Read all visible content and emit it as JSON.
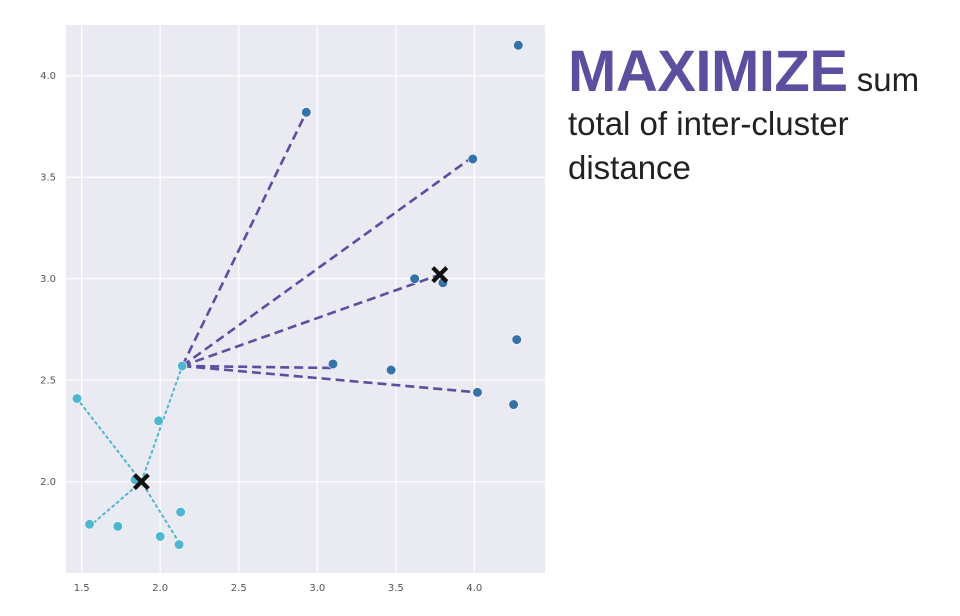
{
  "caption": {
    "emphasis": "MAXIMIZE",
    "rest": " sum total of inter-cluster distance"
  },
  "colors": {
    "background": "#eaeaf2",
    "grid": "#ffffff",
    "cluster_light": "#4fb6cf",
    "cluster_dark": "#3572a8",
    "line": "#5c4fa0",
    "centroid": "#111111",
    "emphasis": "#5c4fa0"
  },
  "chart_data": {
    "type": "scatter",
    "title": "",
    "xlabel": "",
    "ylabel": "",
    "xlim": [
      1.4,
      4.45
    ],
    "ylim": [
      1.55,
      4.25
    ],
    "grid": true,
    "xticks": [
      "1.5",
      "2.0",
      "2.5",
      "3.0",
      "3.5",
      "4.0"
    ],
    "yticks": [
      "2.0",
      "2.5",
      "3.0",
      "3.5",
      "4.0"
    ],
    "series": [
      {
        "color": "cluster_light",
        "points": [
          [
            1.47,
            2.41
          ],
          [
            1.55,
            1.79
          ],
          [
            1.73,
            1.78
          ],
          [
            1.84,
            2.01
          ],
          [
            1.99,
            2.3
          ],
          [
            2.0,
            1.73
          ],
          [
            2.12,
            1.69
          ],
          [
            2.13,
            1.85
          ],
          [
            2.14,
            2.57
          ]
        ]
      },
      {
        "color": "cluster_dark",
        "points": [
          [
            2.93,
            3.82
          ],
          [
            3.1,
            2.58
          ],
          [
            3.47,
            2.55
          ],
          [
            3.62,
            3.0
          ],
          [
            3.8,
            2.98
          ],
          [
            3.99,
            3.59
          ],
          [
            4.02,
            2.44
          ],
          [
            4.25,
            2.38
          ],
          [
            4.27,
            2.7
          ],
          [
            4.28,
            4.15
          ]
        ]
      }
    ],
    "centroids": [
      [
        1.88,
        2.0
      ],
      [
        3.78,
        3.02
      ]
    ],
    "dotted_lines_to_centroid": {
      "centroid": [
        1.88,
        2.0
      ],
      "from": [
        [
          1.47,
          2.41
        ],
        [
          1.55,
          1.78
        ],
        [
          2.14,
          2.57
        ],
        [
          2.12,
          1.7
        ]
      ]
    },
    "dashed_lines_from": [
      2.14,
      2.57
    ],
    "dashed_lines_to": [
      [
        2.93,
        3.82
      ],
      [
        3.99,
        3.6
      ],
      [
        3.78,
        3.02
      ],
      [
        3.12,
        2.56
      ],
      [
        4.02,
        2.44
      ]
    ]
  }
}
